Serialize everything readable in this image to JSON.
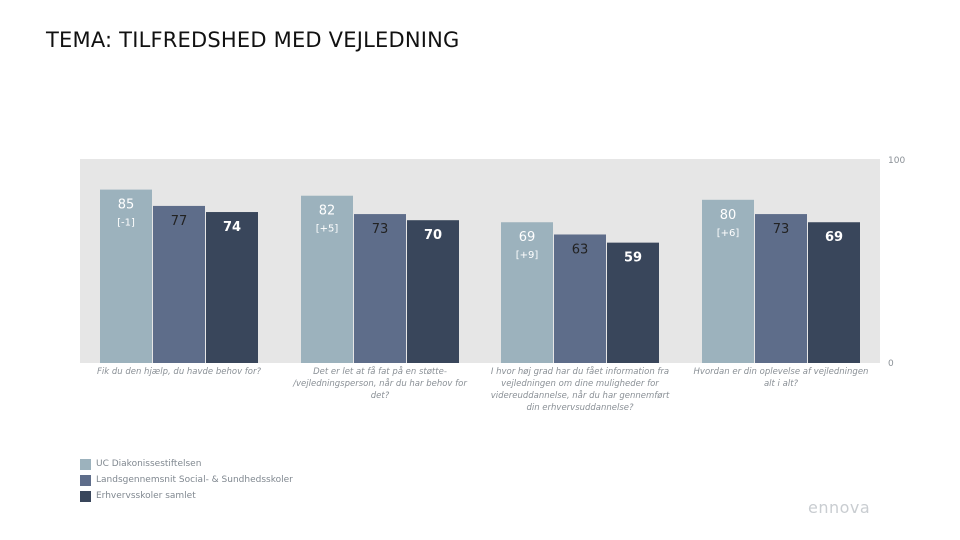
{
  "page": {
    "title": "TEMA: TILFREDSHED MED VEJLEDNING",
    "logo": "ennova"
  },
  "colors": {
    "plot_background": "#e6e6e6",
    "series": [
      "#9cb2bd",
      "#5e6d8a",
      "#39465b"
    ],
    "value_label_light": "#ffffff",
    "value_label_dark": "#222222",
    "category_label": "#8a9096"
  },
  "chart_data": {
    "type": "bar",
    "title": "",
    "xlabel": "",
    "ylabel": "",
    "ylim": [
      0,
      100
    ],
    "y_ticks": [
      "100",
      "0"
    ],
    "grid": false,
    "legend_position": "bottom-left",
    "categories": [
      "Fik du den hjælp, du havde behov for?",
      "Det er let at få fat på en støtte-/vejledningsperson, når du har behov for det?",
      "I hvor høj grad har du fået information fra vejledningen om dine muligheder for videreuddannelse, når du har gennemført din erhvervsuddannelse?",
      "Hvordan er din oplevelse af vejledningen alt i alt?"
    ],
    "category_label_lines": [
      [
        "Fik du den hjælp, du havde behov for?"
      ],
      [
        "Det er let at få fat på en støtte-",
        "/vejledningsperson, når du har behov for",
        "det?"
      ],
      [
        "I hvor høj grad har du fået information fra",
        "vejledningen om dine muligheder for",
        "videreuddannelse, når du har gennemført",
        "din erhvervsuddannelse?"
      ],
      [
        "Hvordan er din oplevelse af vejledningen",
        "alt i alt?"
      ]
    ],
    "series": [
      {
        "name": "UC Diakonissestiftelsen",
        "values": [
          85,
          82,
          69,
          80
        ],
        "changes": [
          "[-1]",
          "[+5]",
          "[+9]",
          "[+6]"
        ]
      },
      {
        "name": "Landsgennemsnit Social- & Sundhedsskoler",
        "values": [
          77,
          73,
          63,
          73
        ]
      },
      {
        "name": "Erhvervsskoler samlet",
        "values": [
          74,
          70,
          59,
          69
        ]
      }
    ]
  }
}
